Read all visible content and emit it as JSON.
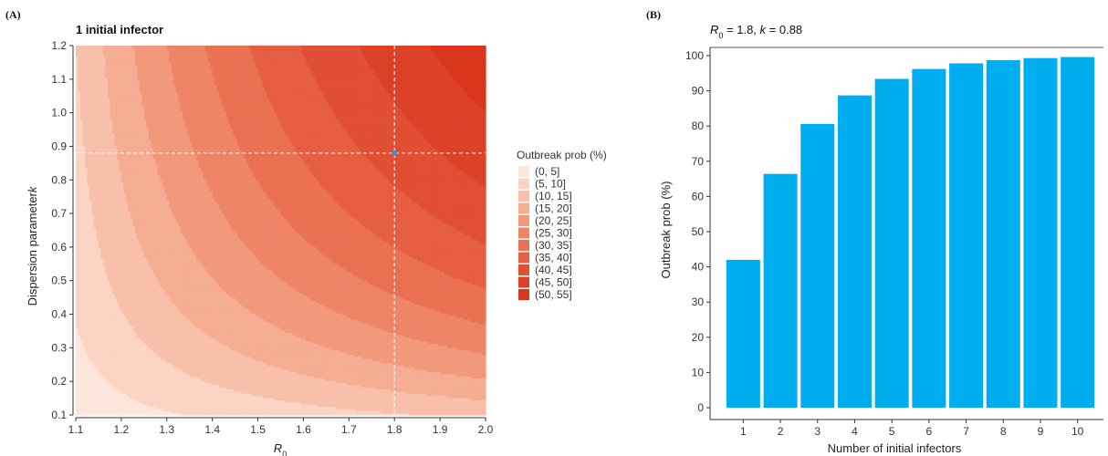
{
  "chart_data": [
    {
      "type": "heatmap",
      "panel_label": "(A)",
      "title": "1 initial infector",
      "xlabel_main": "R",
      "xlabel_sub": "0",
      "ylabel": "Dispersion parameter",
      "ylabel_italic": "k",
      "xlim": [
        1.1,
        2.0
      ],
      "ylim": [
        0.1,
        1.2
      ],
      "x_ticks": [
        "1.1",
        "1.2",
        "1.3",
        "1.4",
        "1.5",
        "1.6",
        "1.7",
        "1.8",
        "1.9",
        "2.0"
      ],
      "y_ticks": [
        "0.1",
        "0.2",
        "0.3",
        "0.4",
        "0.5",
        "0.6",
        "0.7",
        "0.8",
        "0.9",
        "1.0",
        "1.1",
        "1.2"
      ],
      "highlight_point": {
        "x": 1.8,
        "y": 0.88,
        "color": "#3d8fc9"
      },
      "reference_lines": {
        "x": 1.8,
        "y": 0.88,
        "color": "#ffffff",
        "style": "dashed"
      },
      "legend": {
        "title": "Outbreak prob (%)",
        "position": "right",
        "bins": [
          "(0, 5]",
          "(5, 10]",
          "(10, 15]",
          "(15, 20]",
          "(20, 25]",
          "(25, 30]",
          "(30, 35]",
          "(35, 40]",
          "(40, 45]",
          "(45, 50]",
          "(50, 55]"
        ],
        "colors": [
          "#fde7dc",
          "#fbd4c3",
          "#f8c0aa",
          "#f5ad93",
          "#f2997c",
          "#ee8567",
          "#ea7153",
          "#e65f43",
          "#e14f35",
          "#dc4229",
          "#d9361d"
        ]
      },
      "value_formula": "outbreak probability with 1 initial infector: 1 - q, where q solves q = (1 + R0 (1 - q) / k)^(-k)",
      "grid": false
    },
    {
      "type": "bar",
      "panel_label": "(B)",
      "title_main": "R",
      "title_sub": "0",
      "title_rest": " = 1.8, ",
      "title_k": "k",
      "title_kval": " = 0.88",
      "xlabel": "Number of initial infectors",
      "ylabel": "Outbreak prob (%)",
      "ylim": [
        0,
        100
      ],
      "categories": [
        "1",
        "2",
        "3",
        "4",
        "5",
        "6",
        "7",
        "8",
        "9",
        "10"
      ],
      "values": [
        42.0,
        66.4,
        80.6,
        88.7,
        93.4,
        96.2,
        97.8,
        98.7,
        99.3,
        99.6
      ],
      "y_ticks": [
        "0",
        "10",
        "20",
        "30",
        "40",
        "50",
        "60",
        "70",
        "80",
        "90",
        "100"
      ],
      "bar_color": "#00aeef",
      "grid": false
    }
  ]
}
